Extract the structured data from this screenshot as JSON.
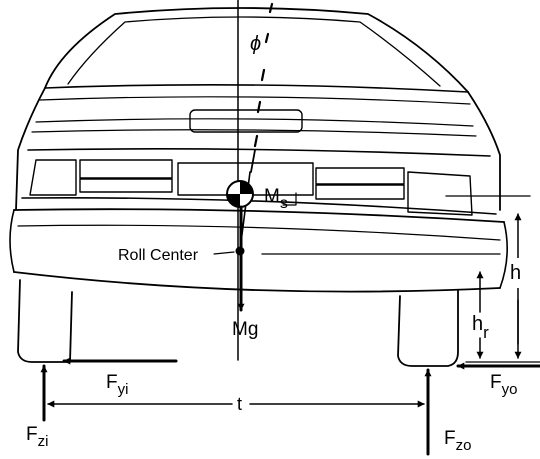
{
  "labels": {
    "phi": "ϕ",
    "ms_main": "M",
    "ms_sub": "s",
    "roll_center": "Roll Center",
    "mg": "Mg",
    "h": "h",
    "hr_main": "h",
    "hr_sub": "r",
    "fyi_main": "F",
    "fyi_sub": "yi",
    "fyo_main": "F",
    "fyo_sub": "yo",
    "fzi_main": "F",
    "fzi_sub": "zi",
    "fzo_main": "F",
    "fzo_sub": "zo",
    "t": "t"
  }
}
